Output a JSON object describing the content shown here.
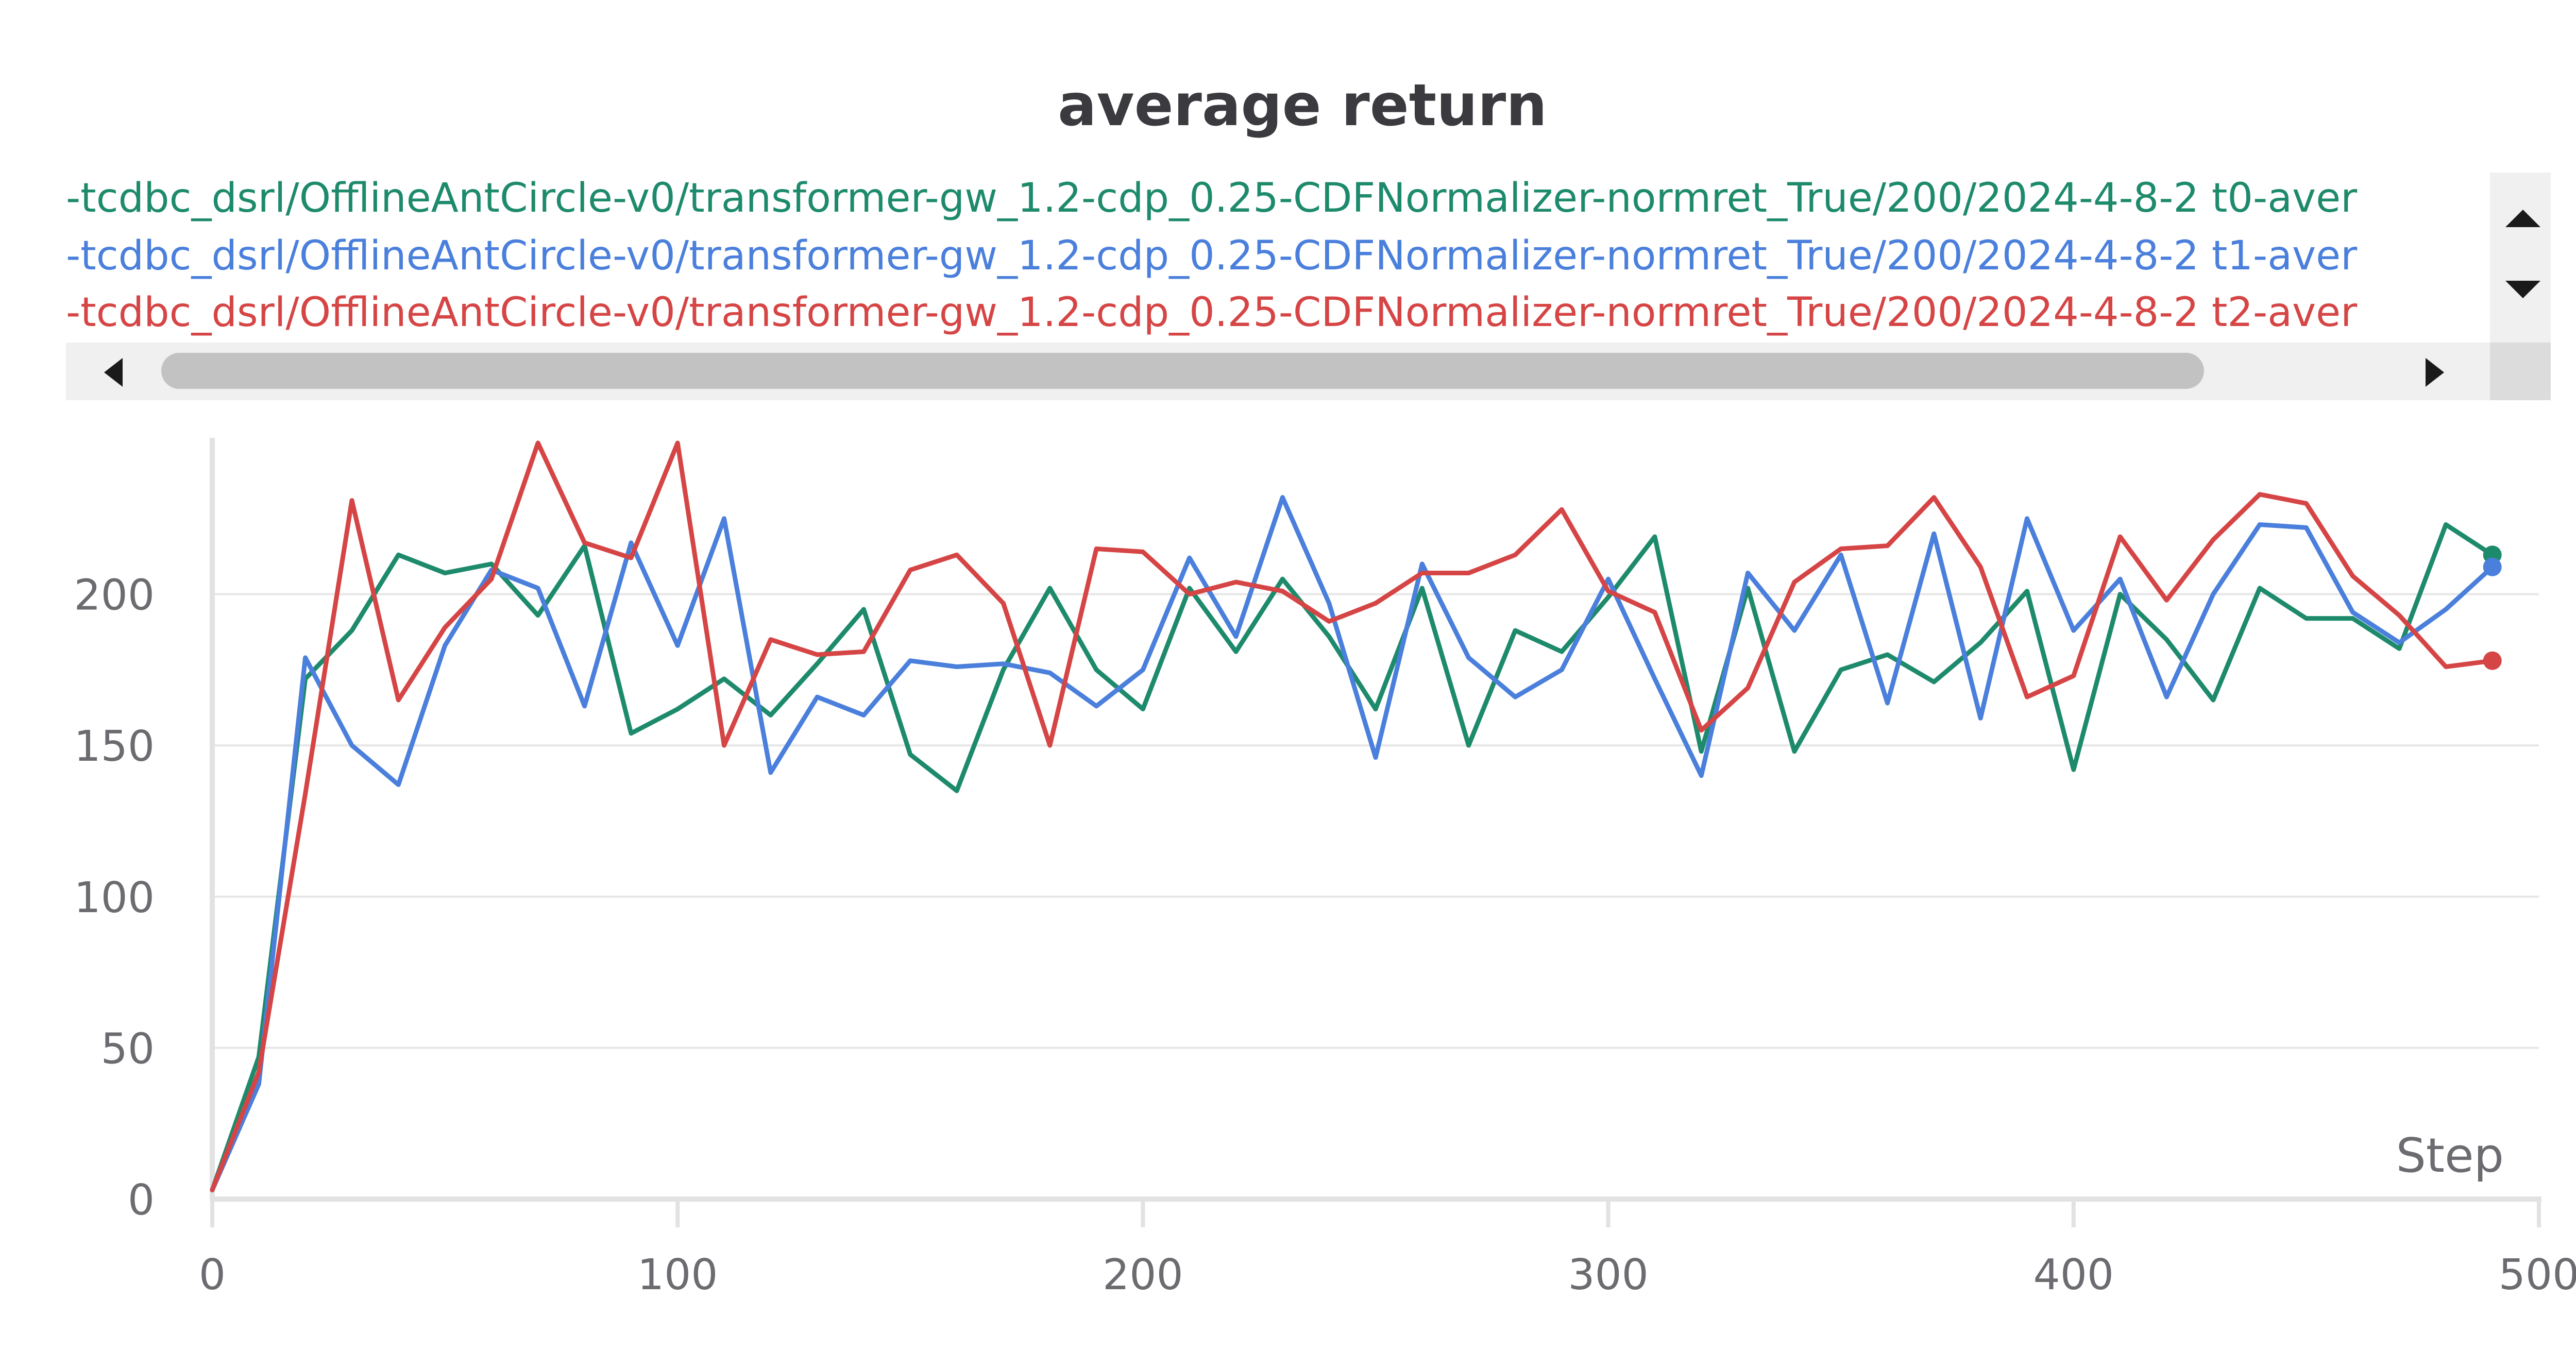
{
  "chart_data": {
    "type": "line",
    "title": "average return",
    "xlabel": "Step",
    "ylabel": "",
    "xlim": [
      0,
      500
    ],
    "ylim": [
      0,
      250
    ],
    "x_ticks": [
      "0",
      "100",
      "200",
      "300",
      "400",
      "500"
    ],
    "y_ticks": [
      "0",
      "50",
      "100",
      "150",
      "200"
    ],
    "grid": true,
    "legend_placement": "top",
    "x": [
      0,
      10,
      20,
      30,
      40,
      50,
      60,
      70,
      80,
      90,
      100,
      110,
      120,
      130,
      140,
      150,
      160,
      170,
      180,
      190,
      200,
      210,
      220,
      230,
      240,
      250,
      260,
      270,
      280,
      290,
      300,
      310,
      320,
      330,
      340,
      350,
      360,
      370,
      380,
      390,
      400,
      410,
      420,
      430,
      440,
      450,
      460,
      470,
      480,
      490
    ],
    "series": [
      {
        "name": "-tcdbc_dsrl/OfflineAntCircle-v0/transformer-gw_1.2-cdp_0.25-CDFNormalizer-normret_True/200/2024-4-8-2 t0-aver",
        "color": "#1e8a6c",
        "values": [
          3,
          47,
          172,
          188,
          213,
          207,
          210,
          193,
          216,
          154,
          162,
          172,
          160,
          177,
          195,
          147,
          135,
          175,
          202,
          175,
          162,
          202,
          181,
          205,
          186,
          162,
          202,
          150,
          188,
          181,
          199,
          219,
          148,
          202,
          148,
          175,
          180,
          171,
          184,
          201,
          142,
          200,
          185,
          165,
          202,
          192,
          192,
          182,
          223,
          213
        ]
      },
      {
        "name": "-tcdbc_dsrl/OfflineAntCircle-v0/transformer-gw_1.2-cdp_0.25-CDFNormalizer-normret_True/200/2024-4-8-2 t1-aver",
        "color": "#4a7fdc",
        "values": [
          3,
          38,
          179,
          150,
          137,
          183,
          208,
          202,
          163,
          217,
          183,
          225,
          141,
          166,
          160,
          178,
          176,
          177,
          174,
          163,
          175,
          212,
          186,
          232,
          197,
          146,
          210,
          179,
          166,
          175,
          205,
          172,
          140,
          207,
          188,
          213,
          164,
          220,
          159,
          225,
          188,
          205,
          166,
          200,
          223,
          222,
          194,
          184,
          195,
          209
        ]
      },
      {
        "name": "-tcdbc_dsrl/OfflineAntCircle-v0/transformer-gw_1.2-cdp_0.25-CDFNormalizer-normret_True/200/2024-4-8-2 t2-aver",
        "color": "#d64545",
        "values": [
          3,
          42,
          134,
          231,
          165,
          189,
          205,
          250,
          217,
          212,
          250,
          150,
          185,
          180,
          181,
          208,
          213,
          197,
          150,
          215,
          214,
          200,
          204,
          201,
          191,
          197,
          207,
          207,
          213,
          228,
          201,
          194,
          155,
          169,
          204,
          215,
          216,
          232,
          209,
          166,
          173,
          219,
          198,
          218,
          233,
          230,
          206,
          193,
          176,
          178
        ]
      }
    ]
  }
}
